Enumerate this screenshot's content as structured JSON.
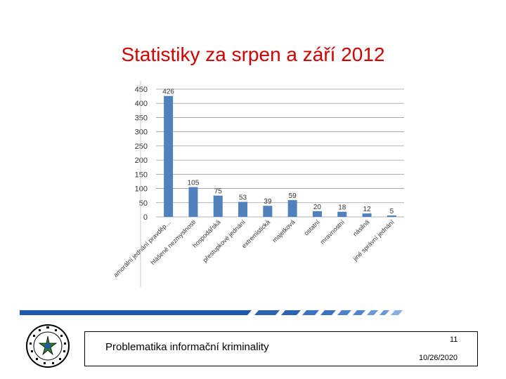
{
  "slide": {
    "title": "Statistiky za srpen a září 2012",
    "footer_text": "Problematika informační kriminality",
    "page_number": "11",
    "date": "10/26/2020"
  },
  "colors": {
    "title": "#cc0000",
    "bar": "#4f81bd",
    "grid": "#9a9a9a",
    "stripe": "#2b63b0"
  },
  "icons": {
    "seal": "police-seal-icon",
    "stripe": "decorative-stripe"
  },
  "chart_data": {
    "type": "bar",
    "title": "",
    "xlabel": "",
    "ylabel": "",
    "ylim": [
      0,
      450
    ],
    "yticks": [
      0,
      50,
      100,
      150,
      200,
      250,
      300,
      350,
      400,
      450
    ],
    "categories": [
      "amorální jednání pravděp…",
      "hlášené nezmyslnosti",
      "hospodářská",
      "přestupkové jednání",
      "extremistická",
      "majetková",
      "ostatní",
      "mravnostní",
      "násilná",
      "jiné správní jednání"
    ],
    "values": [
      426,
      105,
      75,
      53,
      39,
      59,
      20,
      18,
      12,
      5
    ],
    "grid": true,
    "legend": "none"
  }
}
